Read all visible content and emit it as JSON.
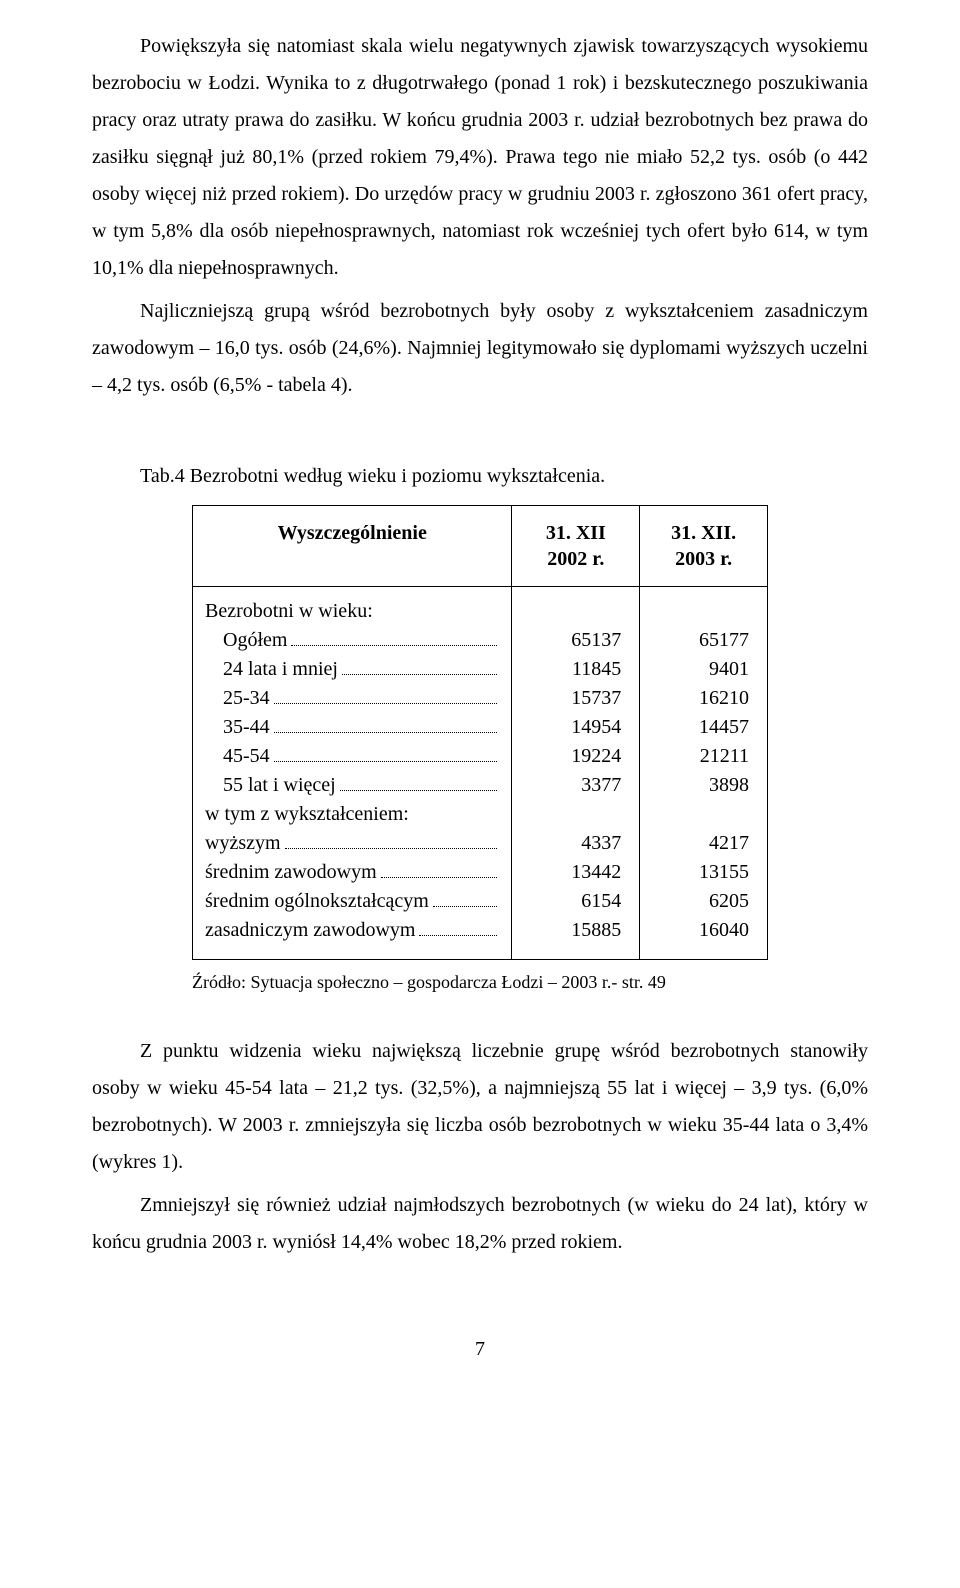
{
  "paragraphs": {
    "p1": "Powiększyła się natomiast skala wielu negatywnych zjawisk towarzyszących wysokiemu bezrobociu w Łodzi. Wynika to z długotrwałego (ponad 1 rok) i bezskutecznego poszukiwania pracy oraz utraty prawa do zasiłku. W końcu grudnia 2003 r. udział bezrobotnych bez prawa do zasiłku sięgnął już 80,1% (przed rokiem 79,4%). Prawa tego nie miało 52,2 tys. osób (o 442 osoby więcej niż przed rokiem). Do urzędów pracy w grudniu 2003 r. zgłoszono 361 ofert pracy, w tym 5,8% dla osób niepełnosprawnych, natomiast rok wcześniej tych ofert było 614, w tym 10,1% dla niepełnosprawnych.",
    "p2": "Najliczniejszą grupą wśród bezrobotnych były osoby z wykształceniem zasadniczym zawodowym – 16,0  tys. osób (24,6%). Najmniej legitymowało się dyplomami wyższych uczelni – 4,2 tys. osób (6,5% - tabela 4)."
  },
  "table_caption": "Tab.4  Bezrobotni według wieku i poziomu wykształcenia.",
  "table": {
    "headers": {
      "c0": "Wyszczególnienie",
      "c1_line1": "31. XII",
      "c1_line2": "2002 r.",
      "c2_line1": "31. XII.",
      "c2_line2": "2003 r."
    },
    "rows": [
      {
        "label": "Bezrobotni w wieku:",
        "indent": 0,
        "dots": false,
        "v1": "",
        "v2": ""
      },
      {
        "label": "Ogółem",
        "indent": 1,
        "dots": true,
        "v1": "65137",
        "v2": "65177"
      },
      {
        "label": "24 lata i mniej",
        "indent": 1,
        "dots": true,
        "v1": "11845",
        "v2": "9401"
      },
      {
        "label": "25-34",
        "indent": 1,
        "dots": true,
        "v1": "15737",
        "v2": "16210"
      },
      {
        "label": "35-44",
        "indent": 1,
        "dots": true,
        "v1": "14954",
        "v2": "14457"
      },
      {
        "label": "45-54",
        "indent": 1,
        "dots": true,
        "v1": "19224",
        "v2": "21211"
      },
      {
        "label": "55 lat i więcej",
        "indent": 1,
        "dots": true,
        "v1": "3377",
        "v2": "3898"
      },
      {
        "label": "w tym z wykształceniem:",
        "indent": 0,
        "dots": false,
        "v1": "",
        "v2": ""
      },
      {
        "label": "wyższym",
        "indent": 0,
        "dots": true,
        "v1": "4337",
        "v2": "4217"
      },
      {
        "label": "średnim  zawodowym",
        "indent": 0,
        "dots": true,
        "v1": "13442",
        "v2": "13155"
      },
      {
        "label": "średnim  ogólnokształcącym",
        "indent": 0,
        "dots": true,
        "v1": "6154",
        "v2": "6205"
      },
      {
        "label": "zasadniczym zawodowym",
        "indent": 0,
        "dots": true,
        "v1": "15885",
        "v2": "16040"
      }
    ]
  },
  "source_line": "Źródło: Sytuacja społeczno – gospodarcza Łodzi – 2003 r.- str. 49",
  "after_paragraphs": {
    "a1": "Z punktu widzenia wieku największą liczebnie grupę wśród bezrobotnych stanowiły osoby w wieku 45-54 lata – 21,2 tys. (32,5%), a najmniejszą 55 lat i więcej – 3,9 tys. (6,0% bezrobotnych). W 2003 r. zmniejszyła się liczba osób bezrobotnych w wieku 35-44 lata o 3,4% (wykres 1).",
    "a2": "Zmniejszył się również udział najmłodszych bezrobotnych (w wieku do 24 lat), który w końcu grudnia 2003 r. wyniósł 14,4% wobec 18,2% przed rokiem."
  },
  "page_number": "7"
}
